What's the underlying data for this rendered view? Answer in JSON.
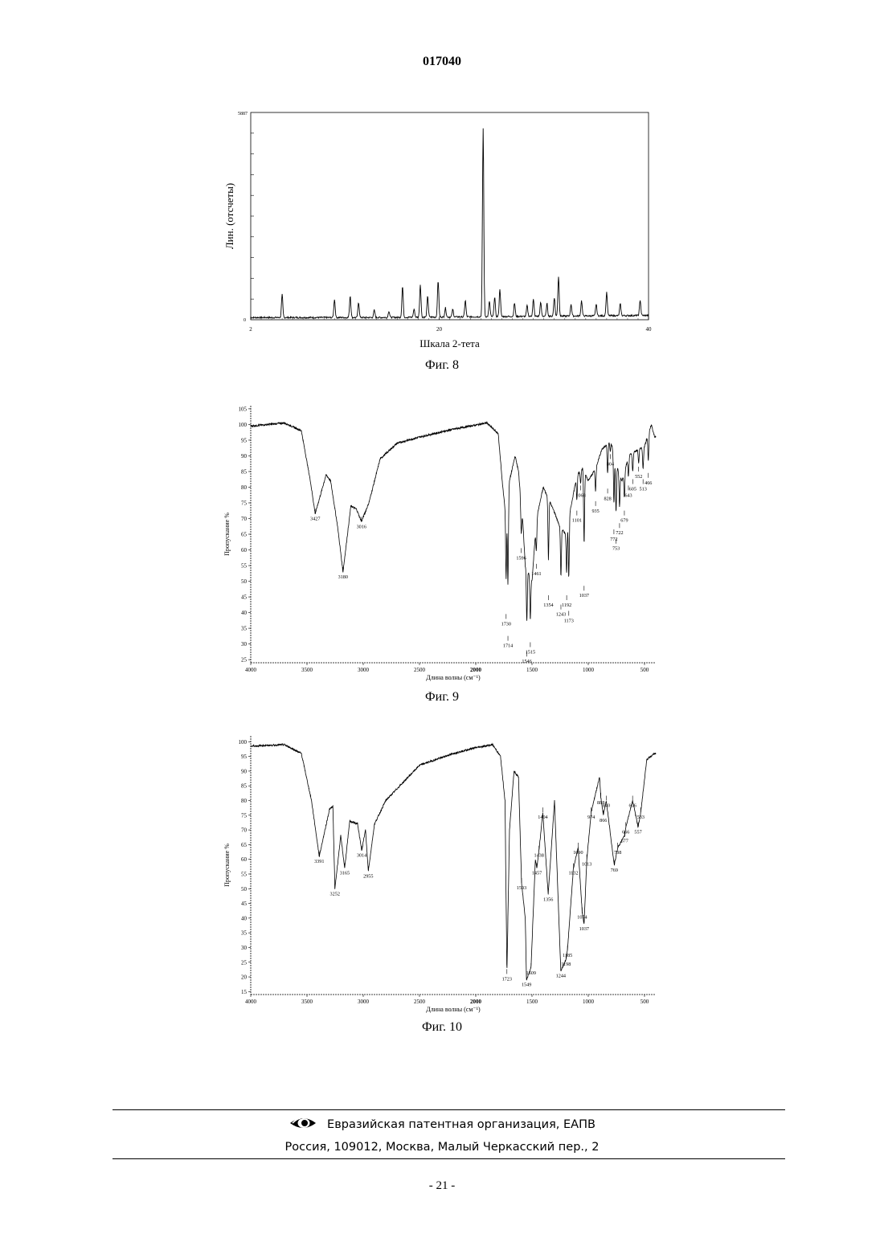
{
  "header": {
    "doc_number": "017040"
  },
  "figures": [
    {
      "caption": "Фиг. 8",
      "chart_data": {
        "type": "line",
        "xlabel": "Шкала 2-тета",
        "ylabel": "Лин. (отсчеты)",
        "x_ticks": [
          "2",
          "20",
          "40"
        ],
        "y_ticks": [
          "0",
          "5887"
        ],
        "xlim": [
          2,
          40
        ],
        "ylim": [
          0,
          5887
        ],
        "grid": false,
        "peaks": [
          [
            5.0,
            650
          ],
          [
            10.0,
            520
          ],
          [
            11.5,
            620
          ],
          [
            12.3,
            430
          ],
          [
            13.8,
            210
          ],
          [
            15.2,
            180
          ],
          [
            16.5,
            880
          ],
          [
            17.6,
            230
          ],
          [
            18.2,
            930
          ],
          [
            18.9,
            600
          ],
          [
            19.9,
            1040
          ],
          [
            20.6,
            260
          ],
          [
            21.3,
            210
          ],
          [
            22.5,
            470
          ],
          [
            24.2,
            5350
          ],
          [
            24.8,
            440
          ],
          [
            25.3,
            560
          ],
          [
            25.8,
            790
          ],
          [
            27.2,
            380
          ],
          [
            28.4,
            310
          ],
          [
            29.0,
            480
          ],
          [
            29.7,
            390
          ],
          [
            30.3,
            360
          ],
          [
            31.0,
            530
          ],
          [
            31.4,
            1130
          ],
          [
            32.6,
            340
          ],
          [
            33.6,
            430
          ],
          [
            35.0,
            330
          ],
          [
            36.0,
            670
          ],
          [
            37.3,
            330
          ],
          [
            39.2,
            440
          ]
        ]
      }
    },
    {
      "caption": "Фиг. 9",
      "chart_data": {
        "type": "line",
        "xlabel": "Длина волны (см⁻¹)",
        "ylabel": "Пропускание %",
        "xlim": [
          4000,
          400
        ],
        "ylim": [
          24,
          106
        ],
        "x_ticks": [
          "4000",
          "3500",
          "3000",
          "2500",
          "2000",
          "1500",
          "1000",
          "500"
        ],
        "y_ticks": [
          "105",
          "100",
          "95",
          "90",
          "85",
          "80",
          "75",
          "70",
          "65",
          "60",
          "55",
          "50",
          "45",
          "40",
          "35",
          "30",
          "25"
        ],
        "baseline": [
          [
            4000,
            99.5
          ],
          [
            3700,
            100.5
          ],
          [
            3550,
            98
          ],
          [
            3470,
            82
          ],
          [
            3427,
            71.5
          ],
          [
            3330,
            84
          ],
          [
            3290,
            82
          ],
          [
            3230,
            68
          ],
          [
            3180,
            53
          ],
          [
            3110,
            74
          ],
          [
            3060,
            73
          ],
          [
            3016,
            69
          ],
          [
            2950,
            75
          ],
          [
            2850,
            89
          ],
          [
            2700,
            94
          ],
          [
            2500,
            96
          ],
          [
            2200,
            98.5
          ],
          [
            1900,
            100.5
          ],
          [
            1800,
            97
          ],
          [
            1760,
            80
          ],
          [
            1730,
            70
          ],
          [
            1700,
            82
          ],
          [
            1650,
            90
          ],
          [
            1620,
            85
          ],
          [
            1580,
            68
          ],
          [
            1560,
            55
          ],
          [
            1500,
            50
          ],
          [
            1460,
            70
          ],
          [
            1400,
            80
          ],
          [
            1300,
            72
          ],
          [
            1260,
            68
          ],
          [
            1200,
            65
          ],
          [
            1100,
            84
          ],
          [
            1050,
            86
          ],
          [
            1000,
            82
          ],
          [
            935,
            86
          ],
          [
            880,
            92
          ],
          [
            800,
            95
          ],
          [
            760,
            88
          ],
          [
            700,
            82
          ],
          [
            640,
            90
          ],
          [
            560,
            92
          ],
          [
            500,
            93
          ],
          [
            440,
            100
          ],
          [
            410,
            96
          ]
        ],
        "bands": [
          {
            "x": 3427,
            "y": 71.5,
            "label": "3427"
          },
          {
            "x": 3180,
            "y": 53,
            "label": "3180"
          },
          {
            "x": 3016,
            "y": 69,
            "label": "3016"
          },
          {
            "x": 1730,
            "y": 38,
            "label": "1730"
          },
          {
            "x": 1714,
            "y": 31,
            "label": "1714"
          },
          {
            "x": 1596,
            "y": 59,
            "label": "1596"
          },
          {
            "x": 1546,
            "y": 26,
            "label": "1546"
          },
          {
            "x": 1515,
            "y": 29,
            "label": "1515"
          },
          {
            "x": 1461,
            "y": 54,
            "label": "1461"
          },
          {
            "x": 1354,
            "y": 44,
            "label": "1354"
          },
          {
            "x": 1243,
            "y": 41,
            "label": "1243"
          },
          {
            "x": 1192,
            "y": 44,
            "label": "1192"
          },
          {
            "x": 1173,
            "y": 39,
            "label": "1173"
          },
          {
            "x": 1101,
            "y": 71,
            "label": "1101"
          },
          {
            "x": 1068,
            "y": 79,
            "label": "1068"
          },
          {
            "x": 1037,
            "y": 47,
            "label": "1037"
          },
          {
            "x": 935,
            "y": 74,
            "label": "935"
          },
          {
            "x": 828,
            "y": 78,
            "label": "828"
          },
          {
            "x": 804,
            "y": 89,
            "label": "804"
          },
          {
            "x": 772,
            "y": 65,
            "label": "772"
          },
          {
            "x": 753,
            "y": 62,
            "label": "753"
          },
          {
            "x": 722,
            "y": 67,
            "label": "722"
          },
          {
            "x": 679,
            "y": 71,
            "label": "679"
          },
          {
            "x": 643,
            "y": 79,
            "label": "643"
          },
          {
            "x": 605,
            "y": 81,
            "label": "605"
          },
          {
            "x": 552,
            "y": 85,
            "label": "552"
          },
          {
            "x": 513,
            "y": 81,
            "label": "513"
          },
          {
            "x": 466,
            "y": 83,
            "label": "466"
          }
        ]
      }
    },
    {
      "caption": "Фиг. 10",
      "chart_data": {
        "type": "line",
        "xlabel": "Длина волны (см⁻¹)",
        "ylabel": "Пропускание %",
        "xlim": [
          4000,
          400
        ],
        "ylim": [
          14,
          102
        ],
        "x_ticks": [
          "4000",
          "3500",
          "3000",
          "2500",
          "2000",
          "1500",
          "1000",
          "500"
        ],
        "y_ticks": [
          "100",
          "95",
          "90",
          "85",
          "80",
          "75",
          "70",
          "65",
          "60",
          "55",
          "50",
          "45",
          "40",
          "35",
          "30",
          "25",
          "20",
          "15"
        ],
        "baseline": [
          [
            4000,
            98.5
          ],
          [
            3700,
            99
          ],
          [
            3550,
            96
          ],
          [
            3460,
            80
          ],
          [
            3391,
            61
          ],
          [
            3300,
            77
          ],
          [
            3270,
            78
          ],
          [
            3252,
            50
          ],
          [
            3200,
            68
          ],
          [
            3165,
            57
          ],
          [
            3120,
            73
          ],
          [
            3050,
            72
          ],
          [
            3014,
            63
          ],
          [
            2980,
            70
          ],
          [
            2955,
            56
          ],
          [
            2900,
            72
          ],
          [
            2800,
            80
          ],
          [
            2700,
            84
          ],
          [
            2500,
            92
          ],
          [
            2200,
            96
          ],
          [
            2000,
            98
          ],
          [
            1850,
            99
          ],
          [
            1780,
            95
          ],
          [
            1740,
            80
          ],
          [
            1723,
            21
          ],
          [
            1700,
            70
          ],
          [
            1660,
            90
          ],
          [
            1620,
            88
          ],
          [
            1593,
            52
          ],
          [
            1560,
            40
          ],
          [
            1549,
            19
          ],
          [
            1509,
            23
          ],
          [
            1470,
            60
          ],
          [
            1457,
            57
          ],
          [
            1438,
            63
          ],
          [
            1404,
            76
          ],
          [
            1356,
            48
          ],
          [
            1300,
            80
          ],
          [
            1244,
            22
          ],
          [
            1198,
            26
          ],
          [
            1185,
            29
          ],
          [
            1132,
            57
          ],
          [
            1090,
            64
          ],
          [
            1054,
            42
          ],
          [
            1037,
            38
          ],
          [
            1013,
            60
          ],
          [
            974,
            76
          ],
          [
            900,
            88
          ],
          [
            888,
            81
          ],
          [
            866,
            75
          ],
          [
            840,
            80
          ],
          [
            769,
            58
          ],
          [
            738,
            64
          ],
          [
            677,
            68
          ],
          [
            666,
            71
          ],
          [
            606,
            80
          ],
          [
            557,
            71
          ],
          [
            533,
            76
          ],
          [
            480,
            94
          ],
          [
            410,
            96
          ]
        ],
        "bands": [
          {
            "x": 3391,
            "y": 61,
            "label": "3391"
          },
          {
            "x": 3252,
            "y": 50,
            "label": "3252"
          },
          {
            "x": 3165,
            "y": 57,
            "label": "3165"
          },
          {
            "x": 3014,
            "y": 63,
            "label": "3014"
          },
          {
            "x": 2955,
            "y": 56,
            "label": "2955"
          },
          {
            "x": 1723,
            "y": 21,
            "label": "1723"
          },
          {
            "x": 1593,
            "y": 52,
            "label": "1593"
          },
          {
            "x": 1549,
            "y": 19,
            "label": "1549"
          },
          {
            "x": 1509,
            "y": 23,
            "label": "1509"
          },
          {
            "x": 1457,
            "y": 57,
            "label": "1457"
          },
          {
            "x": 1438,
            "y": 63,
            "label": "1438"
          },
          {
            "x": 1404,
            "y": 76,
            "label": "1404"
          },
          {
            "x": 1356,
            "y": 48,
            "label": "1356"
          },
          {
            "x": 1244,
            "y": 22,
            "label": "1244"
          },
          {
            "x": 1198,
            "y": 26,
            "label": "1198"
          },
          {
            "x": 1185,
            "y": 29,
            "label": "1185"
          },
          {
            "x": 1132,
            "y": 57,
            "label": "1132"
          },
          {
            "x": 1090,
            "y": 64,
            "label": "1090"
          },
          {
            "x": 1054,
            "y": 42,
            "label": "1054"
          },
          {
            "x": 1037,
            "y": 38,
            "label": "1037"
          },
          {
            "x": 1013,
            "y": 60,
            "label": "1013"
          },
          {
            "x": 974,
            "y": 76,
            "label": "974"
          },
          {
            "x": 888,
            "y": 81,
            "label": "888"
          },
          {
            "x": 866,
            "y": 75,
            "label": "866"
          },
          {
            "x": 840,
            "y": 80,
            "label": "840"
          },
          {
            "x": 769,
            "y": 58,
            "label": "769"
          },
          {
            "x": 738,
            "y": 64,
            "label": "738"
          },
          {
            "x": 677,
            "y": 68,
            "label": "677"
          },
          {
            "x": 666,
            "y": 71,
            "label": "666"
          },
          {
            "x": 606,
            "y": 80,
            "label": "606"
          },
          {
            "x": 557,
            "y": 71,
            "label": "557"
          },
          {
            "x": 533,
            "y": 76,
            "label": "533"
          }
        ]
      }
    }
  ],
  "footer": {
    "logo_icon": "eapo-eye-logo",
    "org_line": "Евразийская патентная организация, ЕАПВ",
    "address_line": "Россия, 109012, Москва, Малый Черкасский пер., 2"
  },
  "page_footer": {
    "page_label": "- 21 -"
  }
}
